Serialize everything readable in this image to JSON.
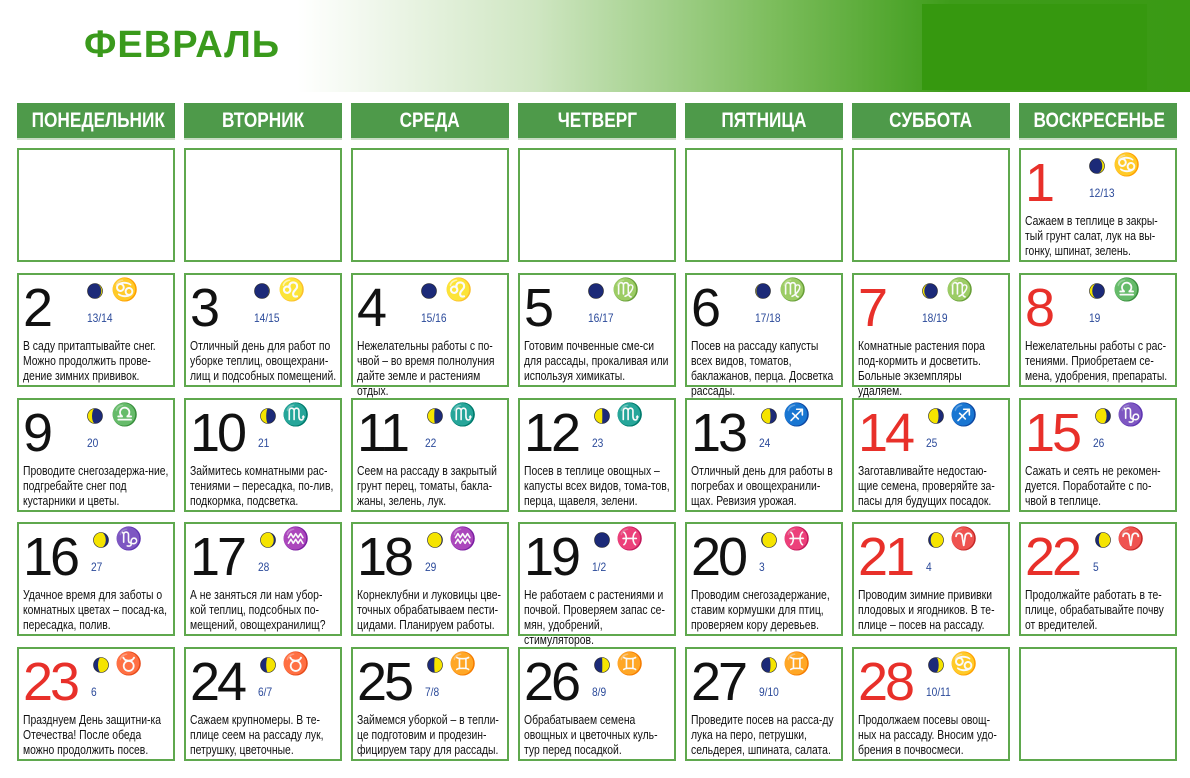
{
  "title": "ФЕВРАЛЬ",
  "colors": {
    "accent": "#4e9a4a",
    "title": "#3a9a1c",
    "holiday": "#e8302a",
    "lunar": "#2b4a9a",
    "moon_lit": "#f5e400",
    "moon_dark": "#1c2a78"
  },
  "weekdays": [
    "ПОНЕДЕЛЬНИК",
    "ВТОРНИК",
    "СРЕДА",
    "ЧЕТВЕРГ",
    "ПЯТНИЦА",
    "СУББОТА",
    "ВОСКРЕСЕНЬЕ"
  ],
  "first_weekday_offset": 6,
  "days": [
    {
      "n": "1",
      "red": true,
      "lunar": "12/13",
      "moon": {
        "lit": 0.85,
        "waxing": true
      },
      "zodiac": "cancer",
      "text": "Сажаем в теплице в закры-тый грунт салат, лук на вы-гонку, шпинат, зелень."
    },
    {
      "n": "2",
      "red": false,
      "lunar": "13/14",
      "moon": {
        "lit": 0.92,
        "waxing": true
      },
      "zodiac": "cancer",
      "text": "В саду притаптывайте снег. Можно продолжить прове-дение зимних прививок."
    },
    {
      "n": "3",
      "red": false,
      "lunar": "14/15",
      "moon": {
        "lit": 0.97,
        "waxing": true
      },
      "zodiac": "leo",
      "text": "Отличный день для работ по уборке теплиц, овощехрани-лищ и подсобных помещений."
    },
    {
      "n": "4",
      "red": false,
      "lunar": "15/16",
      "moon": {
        "lit": 1,
        "waxing": true
      },
      "zodiac": "leo",
      "text": "Нежелательны работы с по-чвой – во время полнолуния дайте земле и растениям отдых."
    },
    {
      "n": "5",
      "red": false,
      "lunar": "16/17",
      "moon": {
        "lit": 1,
        "waxing": false
      },
      "zodiac": "virgo",
      "text": "Готовим почвенные сме-си для рассады, прокаливая или используя химикаты."
    },
    {
      "n": "6",
      "red": false,
      "lunar": "17/18",
      "moon": {
        "lit": 0.95,
        "waxing": false
      },
      "zodiac": "virgo",
      "text": "Посев на рассаду капусты всех видов, томатов, баклажанов, перца. Досветка рассады."
    },
    {
      "n": "7",
      "red": true,
      "lunar": "18/19",
      "moon": {
        "lit": 0.88,
        "waxing": false
      },
      "zodiac": "virgo",
      "text": "Комнатные растения пора под-кормить и досветить. Больные экземпляры удаляем."
    },
    {
      "n": "8",
      "red": true,
      "lunar": "19",
      "moon": {
        "lit": 0.82,
        "waxing": false
      },
      "zodiac": "libra",
      "text": "Нежелательны работы с рас-тениями. Приобретаем се-мена, удобрения, препараты."
    },
    {
      "n": "9",
      "red": false,
      "lunar": "20",
      "moon": {
        "lit": 0.7,
        "waxing": false
      },
      "zodiac": "libra",
      "text": "Проводите снегозадержа-ние, подгребайте снег под кустарники и цветы."
    },
    {
      "n": "10",
      "red": false,
      "lunar": "21",
      "moon": {
        "lit": 0.62,
        "waxing": false
      },
      "zodiac": "scorpio",
      "text": "Займитесь комнатными рас-тениями – пересадка, по-лив, подкормка, подсветка."
    },
    {
      "n": "11",
      "red": false,
      "lunar": "22",
      "moon": {
        "lit": 0.55,
        "waxing": false
      },
      "zodiac": "scorpio",
      "text": "Сеем на рассаду в закрытый грунт перец, томаты, бакла-жаны, зелень, лук."
    },
    {
      "n": "12",
      "red": false,
      "lunar": "23",
      "moon": {
        "lit": 0.48,
        "waxing": false
      },
      "zodiac": "scorpio",
      "text": "Посев в теплице овощных – капусты всех видов, тома-тов, перца, щавеля, зелени."
    },
    {
      "n": "13",
      "red": false,
      "lunar": "24",
      "moon": {
        "lit": 0.4,
        "waxing": false
      },
      "zodiac": "sagittarius",
      "text": "Отличный день для работы в погребах и овощехранили-щах. Ревизия урожая."
    },
    {
      "n": "14",
      "red": true,
      "lunar": "25",
      "moon": {
        "lit": 0.33,
        "waxing": false
      },
      "zodiac": "sagittarius",
      "text": "Заготавливайте недостаю-щие семена, проверяйте за-пасы для будущих посадок."
    },
    {
      "n": "15",
      "red": true,
      "lunar": "26",
      "moon": {
        "lit": 0.26,
        "waxing": false
      },
      "zodiac": "capricorn",
      "text": "Сажать и сеять не рекомен-дуется. Поработайте с по-чвой в теплице."
    },
    {
      "n": "16",
      "red": false,
      "lunar": "27",
      "moon": {
        "lit": 0.18,
        "waxing": false
      },
      "zodiac": "capricorn",
      "text": "Удачное время для заботы о комнатных цветах – посад-ка, пересадка, полив."
    },
    {
      "n": "17",
      "red": false,
      "lunar": "28",
      "moon": {
        "lit": 0.12,
        "waxing": false
      },
      "zodiac": "aquarius",
      "text": "А не заняться ли нам убор-кой теплиц, подсобных по-мещений, овощехранилищ?"
    },
    {
      "n": "18",
      "red": false,
      "lunar": "29",
      "moon": {
        "lit": 0.06,
        "waxing": false
      },
      "zodiac": "aquarius",
      "text": "Корнеклубни и луковицы цве-точных обрабатываем пести-цидами. Планируем работы."
    },
    {
      "n": "19",
      "red": false,
      "lunar": "1/2",
      "moon": {
        "lit": 0,
        "waxing": true
      },
      "zodiac": "pisces",
      "text": "Не работаем с растениями и почвой. Проверяем запас се-мян, удобрений, стимуляторов."
    },
    {
      "n": "20",
      "red": false,
      "lunar": "3",
      "moon": {
        "lit": 0.06,
        "waxing": true
      },
      "zodiac": "pisces",
      "text": "Проводим снегозадержание, ставим кормушки для птиц, проверяем кору деревьев."
    },
    {
      "n": "21",
      "red": true,
      "lunar": "4",
      "moon": {
        "lit": 0.15,
        "waxing": true
      },
      "zodiac": "aries",
      "text": "Проводим зимние прививки плодовых и ягодников. В те-плице – посев на рассаду."
    },
    {
      "n": "22",
      "red": true,
      "lunar": "5",
      "moon": {
        "lit": 0.22,
        "waxing": true
      },
      "zodiac": "aries",
      "text": "Продолжайте работать в те-плице, обрабатывайте почву от вредителей."
    },
    {
      "n": "23",
      "red": true,
      "lunar": "6",
      "moon": {
        "lit": 0.3,
        "waxing": true
      },
      "zodiac": "taurus",
      "text": "Празднуем День защитни-ка Отечества! После обеда можно продолжить посев."
    },
    {
      "n": "24",
      "red": false,
      "lunar": "6/7",
      "moon": {
        "lit": 0.38,
        "waxing": true
      },
      "zodiac": "taurus",
      "text": "Сажаем крупномеры. В те-плице сеем на рассаду лук, петрушку, цветочные."
    },
    {
      "n": "25",
      "red": false,
      "lunar": "7/8",
      "moon": {
        "lit": 0.45,
        "waxing": true
      },
      "zodiac": "gemini",
      "text": "Займемся уборкой – в тепли-це подготовим и продезин-фицируем тару для рассады."
    },
    {
      "n": "26",
      "red": false,
      "lunar": "8/9",
      "moon": {
        "lit": 0.52,
        "waxing": true
      },
      "zodiac": "gemini",
      "text": "Обрабатываем семена овощных и цветочных куль-тур перед посадкой."
    },
    {
      "n": "27",
      "red": false,
      "lunar": "9/10",
      "moon": {
        "lit": 0.6,
        "waxing": true
      },
      "zodiac": "gemini",
      "text": "Проведите посев на расса-ду лука на перо, петрушки, сельдерея, шпината, салата."
    },
    {
      "n": "28",
      "red": true,
      "lunar": "10/11",
      "moon": {
        "lit": 0.68,
        "waxing": true
      },
      "zodiac": "cancer",
      "text": "Продолжаем посевы овощ-ных на рассаду. Вносим удо-брения в почвосмеси."
    }
  ]
}
